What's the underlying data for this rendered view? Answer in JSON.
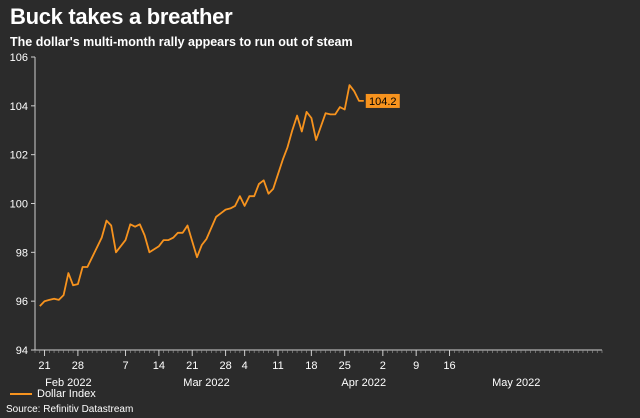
{
  "chart_data": {
    "type": "line",
    "title": "Buck takes a breather",
    "subtitle": "The dollar's multi-month rally appears to run out of steam",
    "xlabel": "",
    "ylabel": "",
    "ylim": [
      94,
      106
    ],
    "y_ticks": [
      94,
      96,
      98,
      100,
      102,
      104,
      106
    ],
    "x_range": [
      "2022-01-19",
      "2022-05-18"
    ],
    "x_tick_labels": [
      {
        "date": "2022-01-21",
        "label": "21"
      },
      {
        "date": "2022-01-28",
        "label": "28"
      },
      {
        "date": "2022-02-07",
        "label": "7"
      },
      {
        "date": "2022-02-14",
        "label": "14"
      },
      {
        "date": "2022-02-21",
        "label": "21"
      },
      {
        "date": "2022-02-28",
        "label": "28"
      },
      {
        "date": "2022-03-04",
        "label": "4"
      },
      {
        "date": "2022-03-11",
        "label": "11"
      },
      {
        "date": "2022-03-18",
        "label": "18"
      },
      {
        "date": "2022-03-25",
        "label": "25"
      },
      {
        "date": "2022-04-02",
        "label": "2"
      },
      {
        "date": "2022-04-09",
        "label": "9"
      },
      {
        "date": "2022-04-16",
        "label": "16"
      }
    ],
    "month_labels": [
      {
        "date": "2022-01-26",
        "label": "Feb 2022"
      },
      {
        "date": "2022-02-24",
        "label": "Mar 2022"
      },
      {
        "date": "2022-03-29",
        "label": "Apr 2022"
      },
      {
        "date": "2022-04-30",
        "label": "May 2022"
      }
    ],
    "grid": false,
    "legend": "bottom-left",
    "series": [
      {
        "name": "Dollar Index",
        "color": "#f7931e",
        "points": [
          [
            "2022-01-20",
            95.8
          ],
          [
            "2022-01-21",
            96.0
          ],
          [
            "2022-01-22",
            96.05
          ],
          [
            "2022-01-23",
            96.1
          ],
          [
            "2022-01-24",
            96.05
          ],
          [
            "2022-01-25",
            96.25
          ],
          [
            "2022-01-26",
            97.15
          ],
          [
            "2022-01-27",
            96.65
          ],
          [
            "2022-01-28",
            96.7
          ],
          [
            "2022-01-29",
            97.4
          ],
          [
            "2022-01-30",
            97.4
          ],
          [
            "2022-01-31",
            97.8
          ],
          [
            "2022-02-02",
            98.6
          ],
          [
            "2022-02-03",
            99.3
          ],
          [
            "2022-02-04",
            99.1
          ],
          [
            "2022-02-05",
            98.0
          ],
          [
            "2022-02-07",
            98.5
          ],
          [
            "2022-02-08",
            99.15
          ],
          [
            "2022-02-09",
            99.05
          ],
          [
            "2022-02-10",
            99.15
          ],
          [
            "2022-02-11",
            98.7
          ],
          [
            "2022-02-12",
            98.0
          ],
          [
            "2022-02-14",
            98.25
          ],
          [
            "2022-02-15",
            98.5
          ],
          [
            "2022-02-16",
            98.5
          ],
          [
            "2022-02-17",
            98.6
          ],
          [
            "2022-02-18",
            98.8
          ],
          [
            "2022-02-19",
            98.8
          ],
          [
            "2022-02-20",
            99.1
          ],
          [
            "2022-02-21",
            98.45
          ],
          [
            "2022-02-22",
            97.8
          ],
          [
            "2022-02-23",
            98.3
          ],
          [
            "2022-02-24",
            98.55
          ],
          [
            "2022-02-25",
            99.0
          ],
          [
            "2022-02-26",
            99.45
          ],
          [
            "2022-02-27",
            99.6
          ],
          [
            "2022-02-28",
            99.75
          ],
          [
            "2022-03-01",
            99.8
          ],
          [
            "2022-03-02",
            99.9
          ],
          [
            "2022-03-03",
            100.3
          ],
          [
            "2022-03-04",
            99.9
          ],
          [
            "2022-03-05",
            100.3
          ],
          [
            "2022-03-06",
            100.3
          ],
          [
            "2022-03-07",
            100.8
          ],
          [
            "2022-03-08",
            100.95
          ],
          [
            "2022-03-09",
            100.4
          ],
          [
            "2022-03-10",
            100.6
          ],
          [
            "2022-03-11",
            101.2
          ],
          [
            "2022-03-12",
            101.8
          ],
          [
            "2022-03-13",
            102.3
          ],
          [
            "2022-03-14",
            103.0
          ],
          [
            "2022-03-15",
            103.6
          ],
          [
            "2022-03-16",
            102.95
          ],
          [
            "2022-03-17",
            103.75
          ],
          [
            "2022-03-18",
            103.5
          ],
          [
            "2022-03-19",
            102.6
          ],
          [
            "2022-03-21",
            103.7
          ],
          [
            "2022-03-22",
            103.65
          ],
          [
            "2022-03-23",
            103.65
          ],
          [
            "2022-03-24",
            103.95
          ],
          [
            "2022-03-25",
            103.85
          ],
          [
            "2022-03-26",
            104.85
          ],
          [
            "2022-03-27",
            104.6
          ],
          [
            "2022-03-28",
            104.2
          ],
          [
            "2022-03-29",
            104.2
          ]
        ],
        "last_value_label": "104.2"
      }
    ],
    "source": "Source: Refinitiv Datastream"
  }
}
